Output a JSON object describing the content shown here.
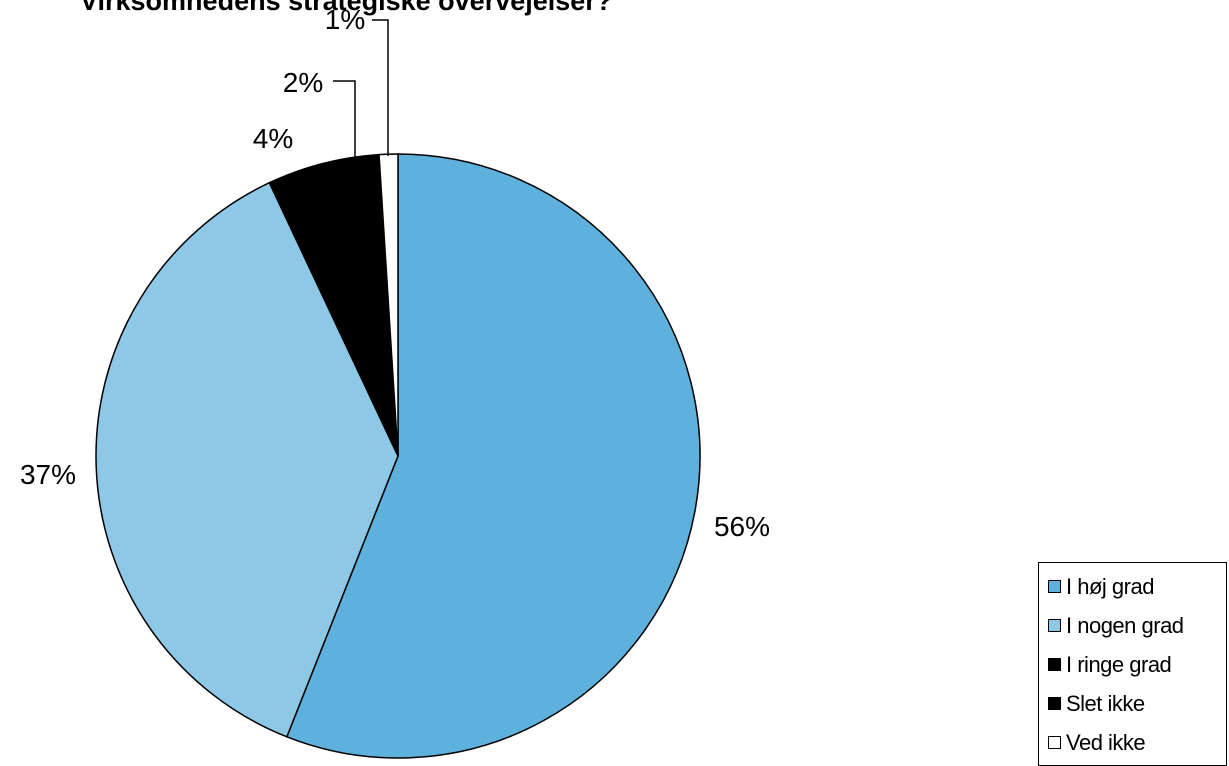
{
  "chart_data": {
    "type": "pie",
    "title": "Virksomhedens strategiske overvejelser?",
    "categories": [
      "I høj grad",
      "I nogen grad",
      "I ringe grad",
      "Slet ikke",
      "Ved ikke"
    ],
    "values": [
      56,
      37,
      4,
      2,
      1
    ],
    "data_labels": [
      "56%",
      "37%",
      "4%",
      "2%",
      "1%"
    ],
    "colors": [
      "#5db1dc",
      "#8dc8e6",
      "#000000",
      "#000000",
      "#ffffff"
    ],
    "start_angle_deg": 0,
    "direction": "clockwise",
    "legend_position": "bottom-right"
  },
  "legend": {
    "items": [
      {
        "label": "I høj grad",
        "color": "#5db1dc"
      },
      {
        "label": "I nogen grad",
        "color": "#8dc8e6"
      },
      {
        "label": "I ringe grad",
        "color": "#000000"
      },
      {
        "label": "Slet ikke",
        "color": "#000000"
      },
      {
        "label": "Ved ikke",
        "color": "#ffffff"
      }
    ]
  }
}
